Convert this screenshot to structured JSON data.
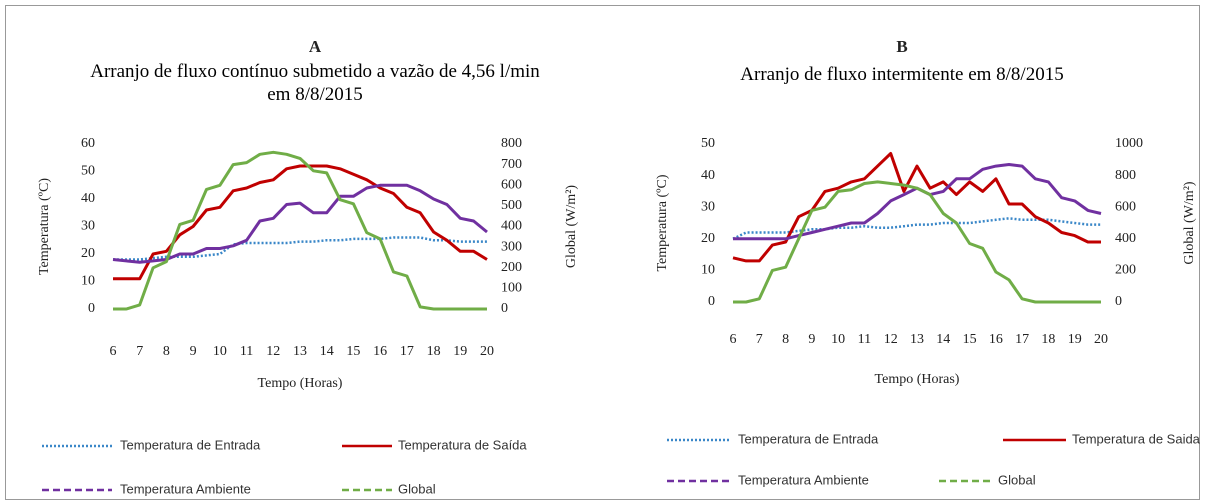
{
  "chart_data": [
    {
      "type": "line",
      "label": "A",
      "title": "Arranjo de fluxo contínuo submetido a vazão de 4,56 l/min em 8/8/2015",
      "xlabel": "Tempo (Horas)",
      "ylabel": "Temperatura (ºC)",
      "y2label": "Global (W/m²)",
      "xlim": [
        6,
        20
      ],
      "xticks": [
        6,
        7,
        8,
        9,
        10,
        11,
        12,
        13,
        14,
        15,
        16,
        17,
        18,
        19,
        20
      ],
      "ylim": [
        0,
        60
      ],
      "yticks": [
        0,
        10,
        20,
        30,
        40,
        50,
        60
      ],
      "y2lim": [
        0,
        800
      ],
      "y2ticks": [
        0,
        100,
        200,
        300,
        400,
        500,
        600,
        700,
        800
      ],
      "x": [
        6,
        6.5,
        7,
        7.5,
        8,
        8.5,
        9,
        9.5,
        10,
        10.5,
        11,
        11.5,
        12,
        12.5,
        13,
        13.5,
        14,
        14.5,
        15,
        15.5,
        16,
        16.5,
        17,
        17.5,
        18,
        18.5,
        19,
        19.5,
        20
      ],
      "series": [
        {
          "name": "Temperatura de Entrada",
          "color": "#3a87c8",
          "style": "dotted",
          "values": [
            18,
            18,
            18,
            18.5,
            19,
            19,
            19,
            19.5,
            20,
            23.5,
            24,
            24,
            24,
            24,
            24.5,
            24.5,
            25,
            25,
            25.5,
            25.5,
            25.5,
            26,
            26,
            26,
            25,
            25,
            24.5,
            24.5,
            24.5
          ]
        },
        {
          "name": "Temperatura de Saída",
          "color": "#c00000",
          "style": "solid",
          "values": [
            11,
            11,
            11,
            20,
            21,
            27,
            30,
            36,
            37,
            43,
            44,
            46,
            47,
            51,
            52,
            52,
            52,
            51,
            49,
            47,
            44,
            42,
            37,
            35,
            28,
            25,
            21,
            21,
            18
          ]
        },
        {
          "name": "Temperatura Ambiente",
          "color": "#7030a0",
          "style": "dashed",
          "values": [
            18,
            17.5,
            17,
            17.5,
            18,
            20,
            20,
            22,
            22,
            23,
            25,
            32,
            33,
            38,
            38.5,
            35,
            35,
            41,
            41,
            44,
            45,
            45,
            45,
            43,
            40,
            38,
            33,
            32,
            28
          ]
        },
        {
          "name": "Global",
          "color": "#70ad47",
          "style": "dashed",
          "axis": "y2",
          "values": [
            0,
            0,
            20,
            200,
            230,
            410,
            430,
            580,
            600,
            700,
            710,
            750,
            760,
            750,
            730,
            670,
            660,
            530,
            510,
            370,
            340,
            180,
            160,
            10,
            0,
            0,
            0,
            0,
            0
          ]
        }
      ]
    },
    {
      "type": "line",
      "label": "B",
      "title": "Arranjo de fluxo intermitente em 8/8/2015",
      "xlabel": "Tempo (Horas)",
      "ylabel": "Temperatura (ºC)",
      "y2label": "Global (W/m²)",
      "xlim": [
        6,
        20
      ],
      "xticks": [
        6,
        7,
        8,
        9,
        10,
        11,
        12,
        13,
        14,
        15,
        16,
        17,
        18,
        19,
        20
      ],
      "ylim": [
        0,
        50
      ],
      "yticks": [
        0,
        10,
        20,
        30,
        40,
        50
      ],
      "y2lim": [
        0,
        1000
      ],
      "y2ticks": [
        0,
        200,
        400,
        600,
        800,
        1000
      ],
      "x": [
        6,
        6.5,
        7,
        7.5,
        8,
        8.5,
        9,
        9.5,
        10,
        10.5,
        11,
        11.5,
        12,
        12.5,
        13,
        13.5,
        14,
        14.5,
        15,
        15.5,
        16,
        16.5,
        17,
        17.5,
        18,
        18.5,
        19,
        19.5,
        20
      ],
      "series": [
        {
          "name": "Temperatura de Entrada",
          "color": "#3a87c8",
          "style": "dotted",
          "values": [
            20,
            22,
            22,
            22,
            22,
            22.5,
            23,
            23,
            23.5,
            23.5,
            24,
            23.5,
            23.5,
            24,
            24.5,
            24.5,
            25,
            25,
            25,
            25.5,
            26,
            26.5,
            26,
            26,
            26,
            25.5,
            25,
            24.5,
            24.5
          ]
        },
        {
          "name": "Temperatura de Saida",
          "color": "#c00000",
          "style": "solid",
          "values": [
            14,
            13,
            13,
            18,
            19,
            27,
            29,
            35,
            36,
            38,
            39,
            43,
            47,
            35,
            43,
            36,
            38,
            34,
            38,
            35,
            39,
            31,
            31,
            27,
            25,
            22,
            21,
            19,
            19
          ]
        },
        {
          "name": "Temperatura Ambiente",
          "color": "#7030a0",
          "style": "dashed",
          "values": [
            20,
            20,
            20,
            20,
            20,
            21,
            22,
            23,
            24,
            25,
            25,
            28,
            32,
            34,
            36,
            34,
            35,
            39,
            39,
            42,
            43,
            43.5,
            43,
            39,
            38,
            33,
            32,
            29,
            28
          ]
        },
        {
          "name": "Global",
          "color": "#70ad47",
          "style": "dashed",
          "axis": "y2",
          "values": [
            0,
            0,
            20,
            200,
            220,
            400,
            580,
            600,
            700,
            710,
            750,
            760,
            750,
            740,
            720,
            680,
            560,
            500,
            370,
            340,
            190,
            140,
            20,
            0,
            0,
            0,
            0,
            0,
            0
          ]
        }
      ]
    }
  ]
}
